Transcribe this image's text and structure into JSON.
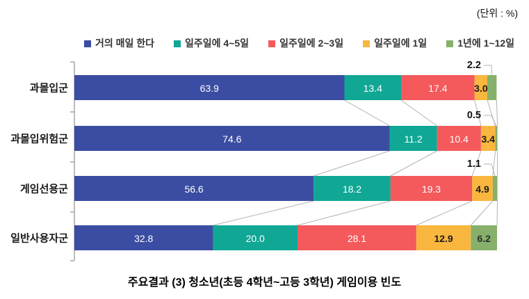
{
  "unit_label": "(단위 : %)",
  "caption": "주요결과 (3) 청소년(초등 4학년~고등 3학년) 게임이용 빈도",
  "chart_data": {
    "type": "bar",
    "orientation": "horizontal",
    "stacked": true,
    "unit": "%",
    "unit_label": "(단위 : %)",
    "title": "주요결과 (3) 청소년(초등 4학년~고등 3학년) 게임이용 빈도",
    "categories": [
      "과몰입군",
      "과몰입위험군",
      "게임선용군",
      "일반사용자군"
    ],
    "series": [
      {
        "name": "거의 매일 한다",
        "color": "#3B4DA2",
        "label_color": "#ffffff",
        "values": [
          63.9,
          74.6,
          56.6,
          32.8
        ]
      },
      {
        "name": "일주일에 4~5일",
        "color": "#10A795",
        "label_color": "#ffffff",
        "values": [
          13.4,
          11.2,
          18.2,
          20.0
        ]
      },
      {
        "name": "일주일에 2~3일",
        "color": "#F4595C",
        "label_color": "#ffffff",
        "values": [
          17.4,
          10.4,
          19.3,
          28.1
        ]
      },
      {
        "name": "일주일에 1일",
        "color": "#F9B73F",
        "label_color": "#1a1a1a",
        "values": [
          3.0,
          3.4,
          4.9,
          12.9
        ]
      },
      {
        "name": "1년에 1~12일",
        "color": "#87B06B",
        "label_color": "#2f2f2f",
        "values": [
          2.2,
          0.5,
          1.1,
          6.2
        ]
      }
    ],
    "callout_labels": [
      {
        "category": "과몰입군",
        "series": "1년에 1~12일",
        "value": 2.2,
        "row": 0
      },
      {
        "category": "과몰입위험군",
        "series": "1년에 1~12일",
        "value": 0.5,
        "row": 1
      },
      {
        "category": "게임선용군",
        "series": "1년에 1~12일",
        "value": 1.1,
        "row": 2
      }
    ],
    "xlim": [
      0,
      100
    ],
    "grid": false,
    "legend_position": "top",
    "value_labels": "inside",
    "connector_lines": true,
    "axis_color": "#a6a6a6",
    "connector_color": "#b3b3b3"
  }
}
